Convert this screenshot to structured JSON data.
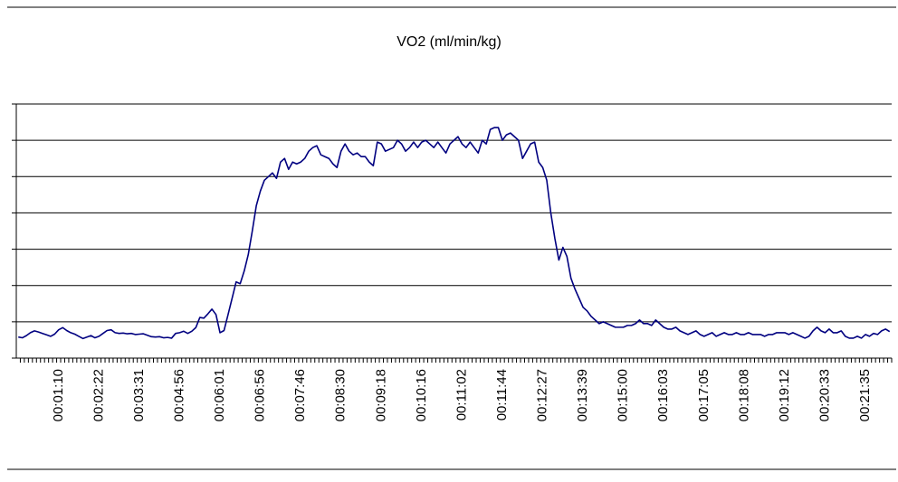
{
  "chart_data": {
    "type": "line",
    "title": "VO2 (ml/min/kg)",
    "categories": [
      null,
      null,
      null,
      null,
      null,
      null,
      null,
      null,
      null,
      null,
      "00:01:10",
      null,
      null,
      null,
      null,
      null,
      null,
      null,
      null,
      null,
      "00:02:22",
      null,
      null,
      null,
      null,
      null,
      null,
      null,
      null,
      null,
      "00:03:31",
      null,
      null,
      null,
      null,
      null,
      null,
      null,
      null,
      null,
      "00:04:56",
      null,
      null,
      null,
      null,
      null,
      null,
      null,
      null,
      null,
      "00:06:01",
      null,
      null,
      null,
      null,
      null,
      null,
      null,
      null,
      null,
      "00:06:56",
      null,
      null,
      null,
      null,
      null,
      null,
      null,
      null,
      null,
      "00:07:46",
      null,
      null,
      null,
      null,
      null,
      null,
      null,
      null,
      null,
      "00:08:30",
      null,
      null,
      null,
      null,
      null,
      null,
      null,
      null,
      null,
      "00:09:18",
      null,
      null,
      null,
      null,
      null,
      null,
      null,
      null,
      null,
      "00:10:16",
      null,
      null,
      null,
      null,
      null,
      null,
      null,
      null,
      null,
      "00:11:02",
      null,
      null,
      null,
      null,
      null,
      null,
      null,
      null,
      null,
      "00:11:44",
      null,
      null,
      null,
      null,
      null,
      null,
      null,
      null,
      null,
      "00:12:27",
      null,
      null,
      null,
      null,
      null,
      null,
      null,
      null,
      null,
      "00:13:39",
      null,
      null,
      null,
      null,
      null,
      null,
      null,
      null,
      null,
      "00:15:00",
      null,
      null,
      null,
      null,
      null,
      null,
      null,
      null,
      null,
      "00:16:03",
      null,
      null,
      null,
      null,
      null,
      null,
      null,
      null,
      null,
      "00:17:05",
      null,
      null,
      null,
      null,
      null,
      null,
      null,
      null,
      null,
      "00:18:08",
      null,
      null,
      null,
      null,
      null,
      null,
      null,
      null,
      null,
      "00:19:12",
      null,
      null,
      null,
      null,
      null,
      null,
      null,
      null,
      null,
      "00:20:33",
      null,
      null,
      null,
      null,
      null,
      null,
      null,
      null,
      null,
      "00:21:35",
      null,
      null,
      null,
      null,
      null,
      null
    ],
    "series": [
      {
        "color": "#000080",
        "values": [
          5.8,
          5.6,
          6.2,
          7.0,
          7.5,
          7.2,
          6.8,
          6.4,
          6.0,
          6.6,
          7.8,
          8.4,
          7.6,
          7.0,
          6.6,
          6.0,
          5.4,
          5.8,
          6.2,
          5.6,
          6.0,
          6.8,
          7.6,
          7.8,
          7.0,
          6.8,
          6.9,
          6.7,
          6.8,
          6.5,
          6.6,
          6.7,
          6.3,
          5.9,
          5.8,
          5.9,
          5.6,
          5.7,
          5.5,
          6.8,
          7.0,
          7.4,
          6.8,
          7.4,
          8.4,
          11.2,
          11.0,
          12.2,
          13.5,
          12.0,
          7.0,
          7.6,
          12.0,
          16.5,
          21.0,
          20.5,
          24.0,
          28.5,
          35.0,
          42.0,
          46,
          49,
          50,
          51,
          49.5,
          54,
          55,
          52,
          54,
          53.5,
          54,
          55,
          57,
          58,
          58.5,
          56,
          55.5,
          55,
          53.5,
          52.5,
          57,
          59,
          57,
          56,
          56.5,
          55.5,
          55.5,
          54,
          53,
          59.5,
          59,
          57,
          57.5,
          58,
          60,
          59,
          57,
          58,
          59.5,
          58,
          59.5,
          60,
          59,
          58,
          59.5,
          58,
          56.5,
          59,
          60,
          61,
          59,
          58,
          59.5,
          58,
          56.5,
          60,
          59,
          63,
          63.5,
          63.5,
          60,
          61.5,
          62,
          61,
          60,
          55,
          57,
          59,
          59.5,
          54,
          52.5,
          49,
          40,
          33,
          27,
          30.5,
          28,
          22,
          19,
          16.5,
          14,
          13,
          11.5,
          10.5,
          9.5,
          10,
          9.5,
          9,
          8.5,
          8.5,
          8.5,
          9,
          9,
          9.5,
          10.5,
          9.5,
          9.5,
          9,
          10.5,
          9.5,
          8.5,
          8,
          8,
          8.5,
          7.5,
          7,
          6.5,
          7,
          7.5,
          6.5,
          6,
          6.5,
          7,
          6,
          6.5,
          7,
          6.5,
          6.5,
          7,
          6.5,
          6.5,
          7,
          6.5,
          6.5,
          6.5,
          6,
          6.5,
          6.5,
          7,
          7,
          7,
          6.5,
          7,
          6.5,
          6,
          5.5,
          6,
          7.5,
          8.5,
          7.5,
          7,
          8,
          7,
          7,
          7.5,
          6,
          5.5,
          5.5,
          6,
          5.5,
          6.5,
          6,
          6.8,
          6.5,
          7.5,
          8,
          7.3
        ]
      }
    ],
    "ylim": [
      0,
      70
    ],
    "yticks": [
      0,
      10,
      20,
      30,
      40,
      50,
      60,
      70
    ],
    "grid": true
  }
}
